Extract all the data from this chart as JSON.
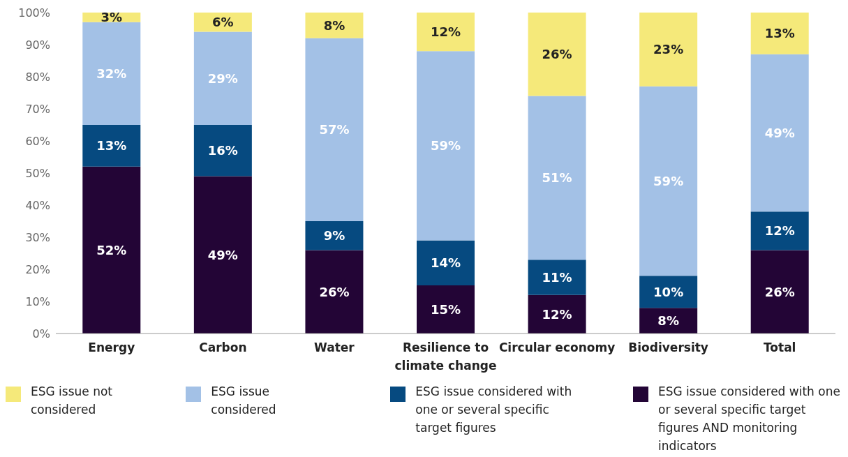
{
  "chart_data": {
    "type": "bar",
    "stacked": true,
    "categories": [
      "Energy",
      "Carbon",
      "Water",
      "Resilience to climate change",
      "Circular economy",
      "Biodiversity",
      "Total"
    ],
    "series": [
      {
        "name": "ESG issue considered with one or several specific target figures AND monitoring indicators",
        "color": "#230536",
        "values": [
          52,
          49,
          26,
          15,
          12,
          8,
          26
        ],
        "value_labels": [
          "52%",
          "49%",
          "26%",
          "15%",
          "12%",
          "8%",
          "26%"
        ]
      },
      {
        "name": "ESG issue considered with one or several specific target figures",
        "color": "#064a80",
        "values": [
          13,
          16,
          9,
          14,
          11,
          10,
          12
        ],
        "value_labels": [
          "13%",
          "16%",
          "9%",
          "14%",
          "11%",
          "10%",
          "12%"
        ]
      },
      {
        "name": "ESG issue considered",
        "color": "#a3c1e6",
        "values": [
          32,
          29,
          57,
          59,
          51,
          59,
          49
        ],
        "value_labels": [
          "32%",
          "29%",
          "57%",
          "59%",
          "51%",
          "59%",
          "49%"
        ]
      },
      {
        "name": "ESG issue not considered",
        "color": "#f5e97a",
        "values": [
          3,
          6,
          8,
          12,
          26,
          23,
          13
        ],
        "value_labels": [
          "3%",
          "6%",
          "8%",
          "12%",
          "26%",
          "23%",
          "13%"
        ]
      }
    ],
    "ylim": [
      0,
      100
    ],
    "yticks": [
      {
        "value": 0,
        "label": "0%"
      },
      {
        "value": 10,
        "label": "10%"
      },
      {
        "value": 20,
        "label": "20%"
      },
      {
        "value": 30,
        "label": "30%"
      },
      {
        "value": 40,
        "label": "40%"
      },
      {
        "value": 50,
        "label": "50%"
      },
      {
        "value": 60,
        "label": "60%"
      },
      {
        "value": 70,
        "label": "70%"
      },
      {
        "value": 80,
        "label": "80%"
      },
      {
        "value": 90,
        "label": "90%"
      },
      {
        "value": 100,
        "label": "100%"
      }
    ],
    "legend": "bottom"
  }
}
